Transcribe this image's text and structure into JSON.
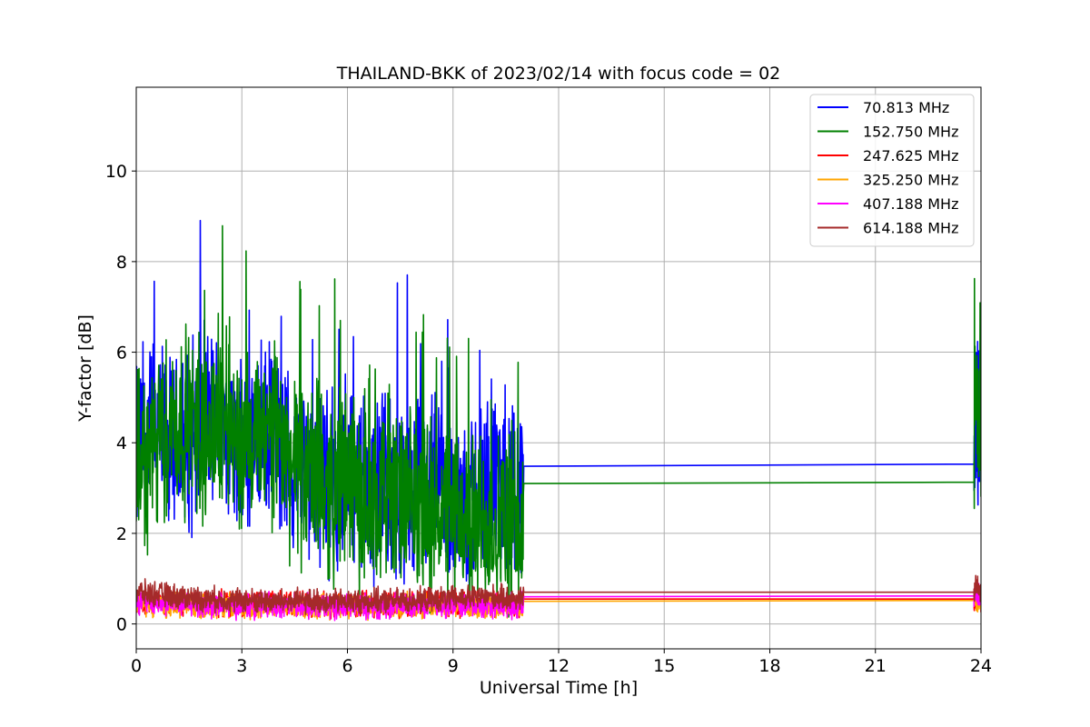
{
  "chart_data": {
    "type": "line",
    "title": "THAILAND-BKK of 2023/02/14 with focus code = 02",
    "xlabel": "Universal Time [h]",
    "ylabel": "Y-factor [dB]",
    "xlim": [
      0,
      24
    ],
    "ylim": [
      -0.55,
      11.85
    ],
    "xticks": [
      0,
      3,
      6,
      9,
      12,
      15,
      18,
      21,
      24
    ],
    "yticks": [
      0,
      2,
      4,
      6,
      8,
      10
    ],
    "grid": true,
    "legend_position": "top-right",
    "series": [
      {
        "name": " 70.813 MHz",
        "color": "#0000ff",
        "noise": "high",
        "x": [
          0,
          0.5,
          1,
          1.5,
          2,
          2.5,
          3,
          3.5,
          4,
          4.5,
          5,
          5.5,
          6,
          6.5,
          7,
          7.5,
          8,
          8.5,
          9,
          9.5,
          10,
          10.5,
          11,
          11.01,
          23.8,
          23.85,
          23.9,
          24
        ],
        "y": [
          3.8,
          4.4,
          3.8,
          4.0,
          4.6,
          4.3,
          3.6,
          4.1,
          4.1,
          3.5,
          3.4,
          3.2,
          3.4,
          3.0,
          3.1,
          3.0,
          2.8,
          3.0,
          2.9,
          2.7,
          3.0,
          3.0,
          2.9,
          3.48,
          3.53,
          4.2,
          4.6,
          4.2
        ]
      },
      {
        "name": "152.750 MHz",
        "color": "#008000",
        "noise": "high",
        "x": [
          0,
          0.5,
          1,
          1.5,
          2,
          2.5,
          3,
          3.5,
          4,
          4.5,
          5,
          5.5,
          6,
          6.5,
          7,
          7.5,
          8,
          8.5,
          9,
          9.5,
          10,
          10.5,
          11,
          11.01,
          23.8,
          23.85,
          23.9,
          24
        ],
        "y": [
          3.4,
          3.8,
          4.4,
          4.4,
          4.1,
          4.8,
          3.8,
          4.0,
          4.2,
          3.4,
          3.3,
          3.0,
          3.2,
          2.6,
          2.9,
          2.7,
          2.5,
          2.5,
          2.4,
          2.2,
          2.3,
          2.2,
          2.0,
          3.1,
          3.13,
          5.5,
          4.5,
          4.0
        ]
      },
      {
        "name": "247.625 MHz",
        "color": "#ff0000",
        "noise": "low",
        "x": [
          0,
          2,
          4,
          6,
          8,
          10,
          11,
          11.01,
          23.8,
          23.85,
          24
        ],
        "y": [
          0.5,
          0.45,
          0.45,
          0.42,
          0.45,
          0.45,
          0.4,
          0.55,
          0.55,
          0.6,
          0.55
        ]
      },
      {
        "name": "325.250 MHz",
        "color": "#ffa500",
        "noise": "low",
        "x": [
          0,
          2,
          4,
          6,
          8,
          10,
          11,
          11.01,
          23.8,
          23.85,
          24
        ],
        "y": [
          0.45,
          0.4,
          0.4,
          0.38,
          0.4,
          0.4,
          0.38,
          0.5,
          0.52,
          0.55,
          0.5
        ]
      },
      {
        "name": "407.188 MHz",
        "color": "#ff00ff",
        "noise": "low",
        "x": [
          0,
          2,
          4,
          6,
          8,
          10,
          11,
          11.01,
          23.8,
          23.85,
          24
        ],
        "y": [
          0.5,
          0.4,
          0.4,
          0.38,
          0.4,
          0.42,
          0.4,
          0.6,
          0.62,
          0.65,
          0.6
        ]
      },
      {
        "name": "614.188 MHz",
        "color": "#a52a2a",
        "noise": "low",
        "x": [
          0,
          2,
          4,
          6,
          8,
          10,
          11,
          11.01,
          23.8,
          23.85,
          24
        ],
        "y": [
          0.7,
          0.55,
          0.5,
          0.5,
          0.52,
          0.6,
          0.55,
          0.7,
          0.7,
          0.85,
          0.7
        ]
      }
    ]
  }
}
